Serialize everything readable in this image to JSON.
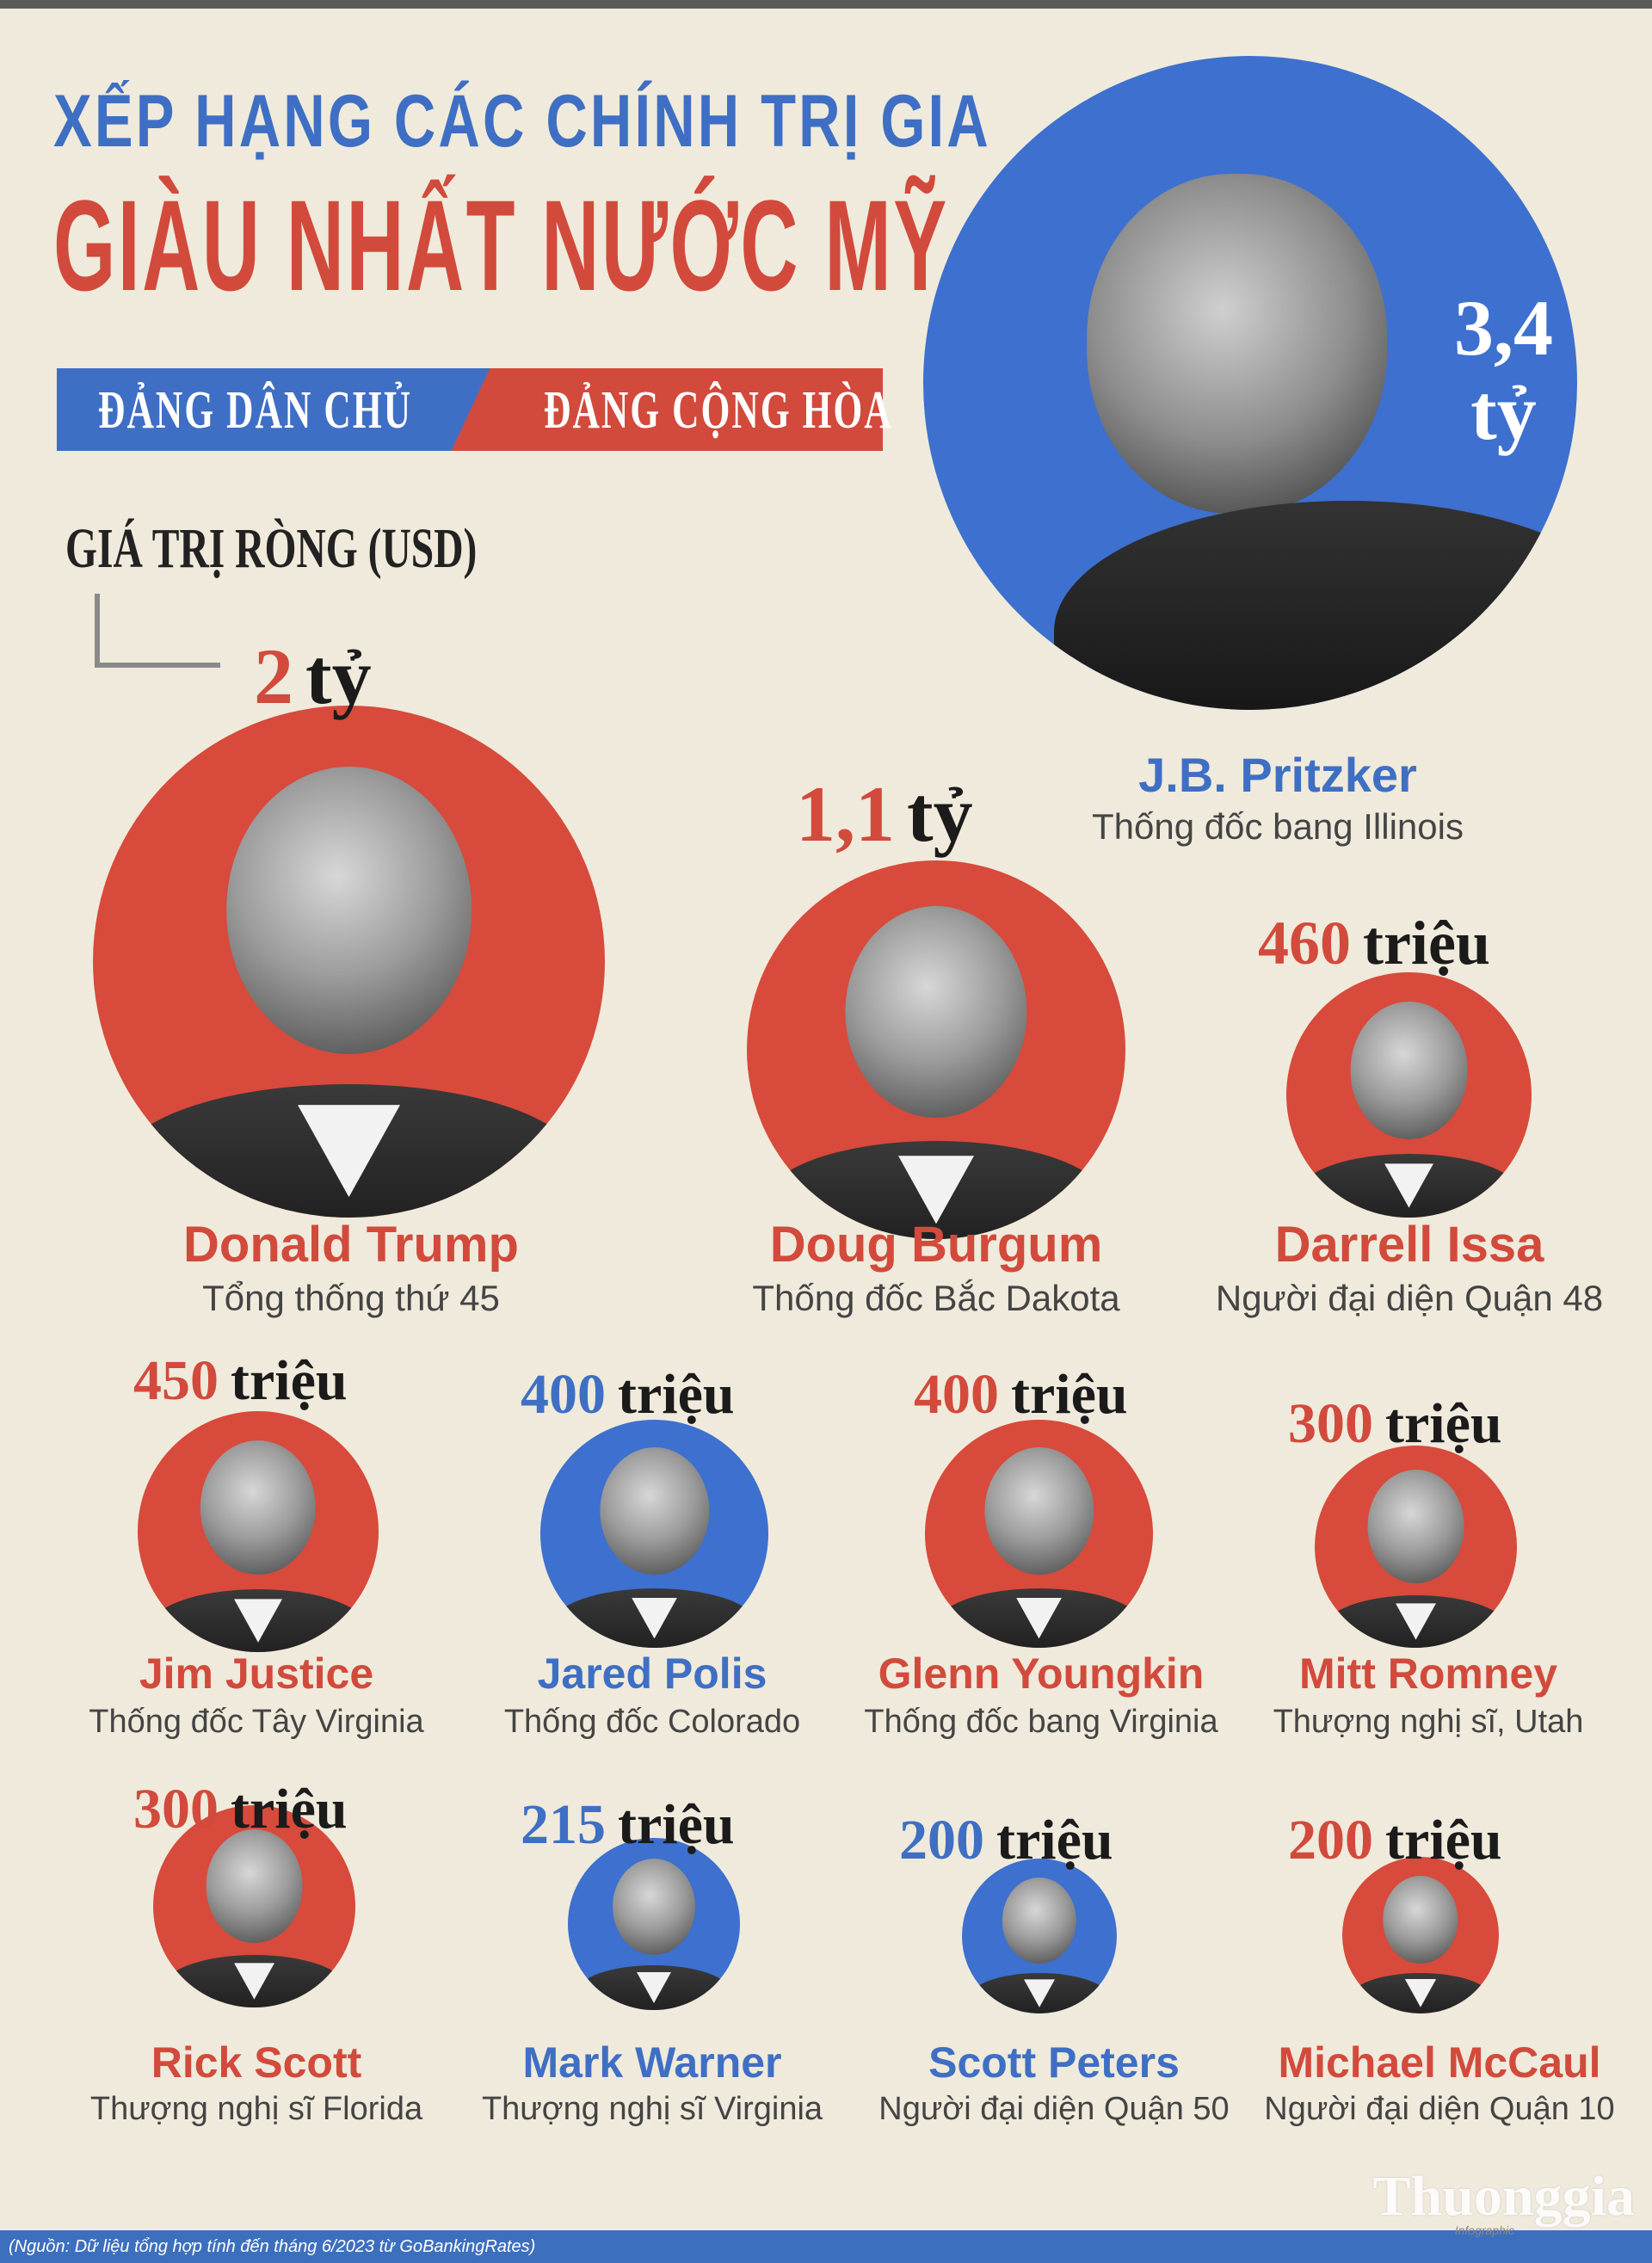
{
  "title": {
    "line1": "XẾP HẠNG CÁC CHÍNH TRỊ GIA",
    "line2": "GIÀU NHẤT NƯỚC MỸ"
  },
  "legend": {
    "democrat": "ĐẢNG DÂN CHỦ",
    "republican": "ĐẢNG CỘNG HÒA"
  },
  "net_worth_label": "GIÁ TRỊ RÒNG (USD)",
  "colors": {
    "democrat": "#3f6fc4",
    "republican": "#d24a3c",
    "background": "#efeadb"
  },
  "politicians": [
    {
      "name": "J.B. Pritzker",
      "role": "Thống đốc bang Illinois",
      "value": "3,4",
      "unit": "tỷ",
      "party": "democrat"
    },
    {
      "name": "Donald Trump",
      "role": "Tổng thống thứ 45",
      "value": "2",
      "unit": "tỷ",
      "party": "republican"
    },
    {
      "name": "Doug Burgum",
      "role": "Thống đốc Bắc Dakota",
      "value": "1,1",
      "unit": "tỷ",
      "party": "republican"
    },
    {
      "name": "Darrell Issa",
      "role": "Người đại diện Quận 48",
      "value": "460",
      "unit": "triệu",
      "party": "republican"
    },
    {
      "name": "Jim Justice",
      "role": "Thống đốc Tây Virginia",
      "value": "450",
      "unit": "triệu",
      "party": "republican"
    },
    {
      "name": "Jared Polis",
      "role": "Thống đốc Colorado",
      "value": "400",
      "unit": "triệu",
      "party": "democrat"
    },
    {
      "name": "Glenn Youngkin",
      "role": "Thống đốc bang Virginia",
      "value": "400",
      "unit": "triệu",
      "party": "republican"
    },
    {
      "name": "Mitt Romney",
      "role": "Thượng nghị sĩ, Utah",
      "value": "300",
      "unit": "triệu",
      "party": "republican"
    },
    {
      "name": "Rick Scott",
      "role": "Thượng nghị sĩ Florida",
      "value": "300",
      "unit": "triệu",
      "party": "republican"
    },
    {
      "name": "Mark Warner",
      "role": "Thượng nghị sĩ Virginia",
      "value": "215",
      "unit": "triệu",
      "party": "democrat"
    },
    {
      "name": "Scott Peters",
      "role": "Người đại diện Quận 50",
      "value": "200",
      "unit": "triệu",
      "party": "democrat"
    },
    {
      "name": "Michael McCaul",
      "role": "Người đại diện Quận 10",
      "value": "200",
      "unit": "triệu",
      "party": "republican"
    }
  ],
  "footer": {
    "source": "(Nguồn: Dữ liệu tổng hợp tính đến tháng 6/2023 từ GoBankingRates)",
    "logo": "Thuonggia",
    "logo_sub": "Infographic"
  }
}
